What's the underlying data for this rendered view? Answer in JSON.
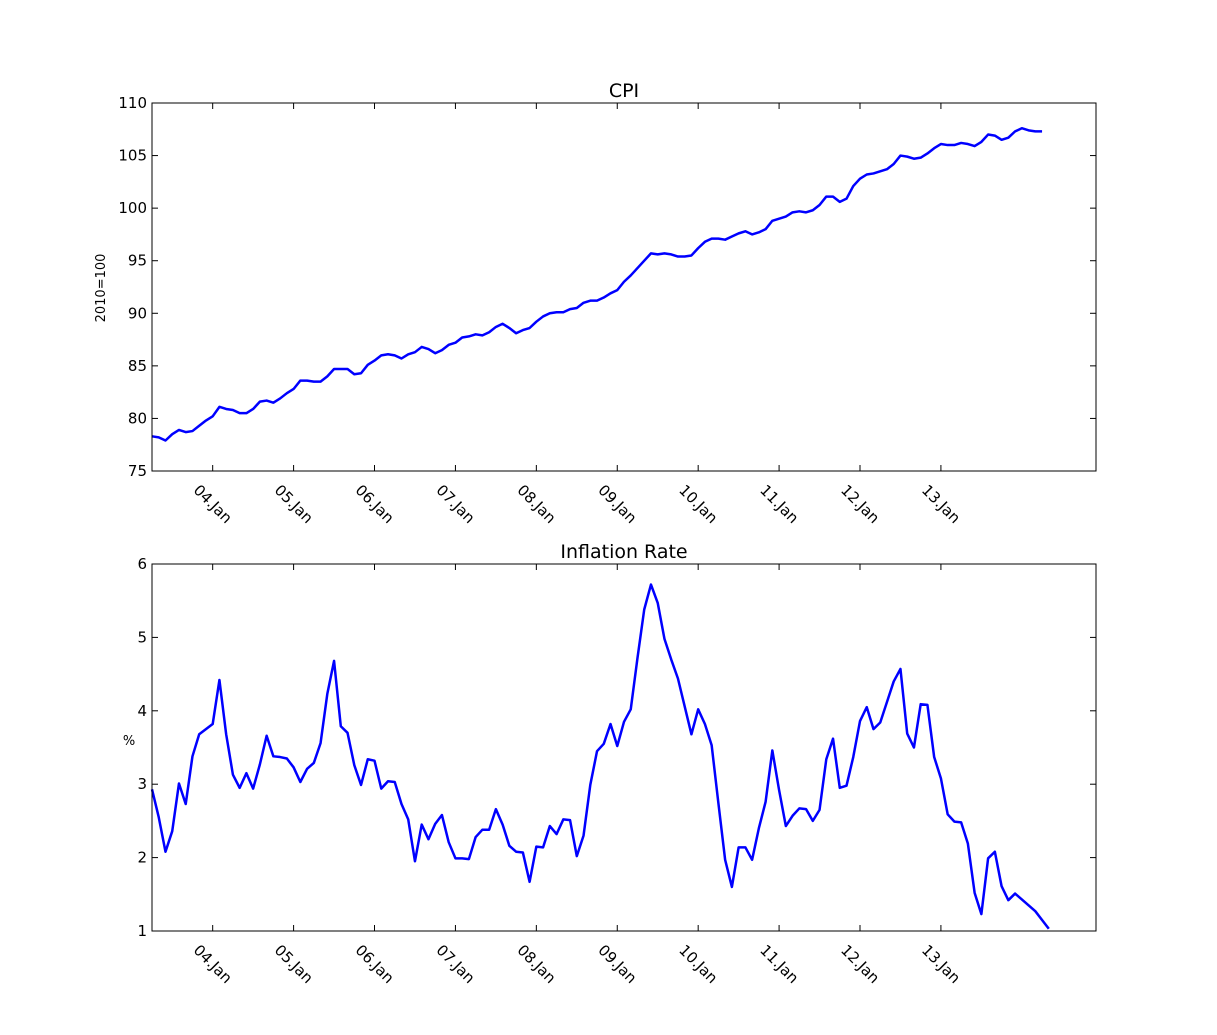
{
  "chart_data": [
    {
      "type": "line",
      "title": "CPI",
      "xlabel": "",
      "ylabel": "2010=100",
      "ylim": [
        75,
        110
      ],
      "yticks": [
        75,
        80,
        85,
        90,
        95,
        100,
        105,
        110
      ],
      "xlim": [
        0,
        140
      ],
      "xticks": [
        {
          "t": 9,
          "label": "04.Jan"
        },
        {
          "t": 21,
          "label": "05.Jan"
        },
        {
          "t": 33,
          "label": "06.Jan"
        },
        {
          "t": 45,
          "label": "07.Jan"
        },
        {
          "t": 57,
          "label": "08.Jan"
        },
        {
          "t": 69,
          "label": "09.Jan"
        },
        {
          "t": 81,
          "label": "10.Jan"
        },
        {
          "t": 93,
          "label": "11.Jan"
        },
        {
          "t": 105,
          "label": "12.Jan"
        },
        {
          "t": 117,
          "label": "13.Jan"
        }
      ],
      "color": "#0000ff",
      "series": [
        {
          "values": [
            78.3,
            78.2,
            77.9,
            78.5,
            78.9,
            78.7,
            78.8,
            79.3,
            79.8,
            80.2,
            81.1,
            80.9,
            80.8,
            80.5,
            80.5,
            80.9,
            81.6,
            81.7,
            81.5,
            81.9,
            82.4,
            82.8,
            83.6,
            83.6,
            83.5,
            83.5,
            84.0,
            84.7,
            84.7,
            84.7,
            84.2,
            84.3,
            85.1,
            85.5,
            86.0,
            86.1,
            86.0,
            85.7,
            86.1,
            86.3,
            86.8,
            86.6,
            86.2,
            86.5,
            87.0,
            87.2,
            87.7,
            87.8,
            88.0,
            87.9,
            88.2,
            88.7,
            89.0,
            88.6,
            88.1,
            88.4,
            88.6,
            89.2,
            89.7,
            90.0,
            90.1,
            90.1,
            90.4,
            90.5,
            91.0,
            91.2,
            91.2,
            91.5,
            91.9,
            92.2,
            93.0,
            93.6,
            94.3,
            95.0,
            95.7,
            95.6,
            95.7,
            95.6,
            95.4,
            95.4,
            95.5,
            96.2,
            96.8,
            97.1,
            97.1,
            97.0,
            97.3,
            97.6,
            97.8,
            97.5,
            97.7,
            98.0,
            98.8,
            99.0,
            99.2,
            99.6,
            99.7,
            99.6,
            99.8,
            100.3,
            101.1,
            101.1,
            100.6,
            100.9,
            102.1,
            102.8,
            103.2,
            103.3,
            103.5,
            103.7,
            104.2,
            105.0,
            104.9,
            104.7,
            104.8,
            105.2,
            105.7,
            106.1,
            106.0,
            106.0,
            106.2,
            106.1,
            105.9,
            106.3,
            107.0,
            106.9,
            106.5,
            106.7,
            107.3,
            107.6,
            107.4,
            107.3,
            107.3
          ]
        }
      ]
    },
    {
      "type": "line",
      "title": "Inflation Rate",
      "xlabel": "",
      "ylabel": "%",
      "ylim": [
        1,
        6
      ],
      "yticks": [
        1,
        2,
        3,
        4,
        5,
        6
      ],
      "xlim": [
        0,
        140
      ],
      "xticks": [
        {
          "t": 9,
          "label": "04.Jan"
        },
        {
          "t": 21,
          "label": "05.Jan"
        },
        {
          "t": 33,
          "label": "06.Jan"
        },
        {
          "t": 45,
          "label": "07.Jan"
        },
        {
          "t": 57,
          "label": "08.Jan"
        },
        {
          "t": 69,
          "label": "09.Jan"
        },
        {
          "t": 81,
          "label": "10.Jan"
        },
        {
          "t": 93,
          "label": "11.Jan"
        },
        {
          "t": 105,
          "label": "12.Jan"
        },
        {
          "t": 117,
          "label": "13.Jan"
        }
      ],
      "color": "#0000ff",
      "series": [
        {
          "values": [
            2.93,
            2.55,
            2.08,
            2.36,
            3.01,
            2.73,
            3.38,
            3.68,
            3.75,
            3.82,
            4.42,
            3.68,
            3.13,
            2.95,
            3.15,
            2.94,
            3.27,
            3.66,
            3.38,
            3.37,
            3.35,
            3.23,
            3.03,
            3.21,
            3.29,
            3.56,
            4.23,
            4.68,
            3.79,
            3.7,
            3.26,
            2.99,
            3.34,
            3.32,
            2.94,
            3.04,
            3.03,
            2.73,
            2.52,
            1.95,
            2.45,
            2.25,
            2.46,
            2.58,
            2.21,
            1.99,
            1.99,
            1.98,
            2.28,
            2.38,
            2.38,
            2.66,
            2.45,
            2.16,
            2.08,
            2.07,
            1.67,
            2.15,
            2.14,
            2.43,
            2.32,
            2.52,
            2.51,
            2.02,
            2.3,
            2.99,
            3.45,
            3.55,
            3.82,
            3.52,
            3.85,
            4.02,
            4.72,
            5.38,
            5.72,
            5.47,
            4.98,
            4.7,
            4.44,
            4.06,
            3.68,
            4.02,
            3.82,
            3.53,
            2.74,
            1.97,
            1.6,
            2.14,
            2.14,
            1.97,
            2.4,
            2.76,
            3.46,
            2.92,
            2.43,
            2.57,
            2.67,
            2.66,
            2.5,
            2.65,
            3.34,
            3.62,
            2.95,
            2.98,
            3.37,
            3.86,
            4.05,
            3.75,
            3.84,
            4.12,
            4.4,
            4.57,
            3.69,
            3.5,
            4.09,
            4.08,
            3.37,
            3.08,
            2.59,
            2.49,
            2.48,
            2.19,
            1.52,
            1.23,
            1.99,
            2.08,
            1.61,
            1.42,
            1.51,
            1.43,
            1.35,
            1.27,
            1.15,
            1.03
          ]
        }
      ]
    }
  ]
}
